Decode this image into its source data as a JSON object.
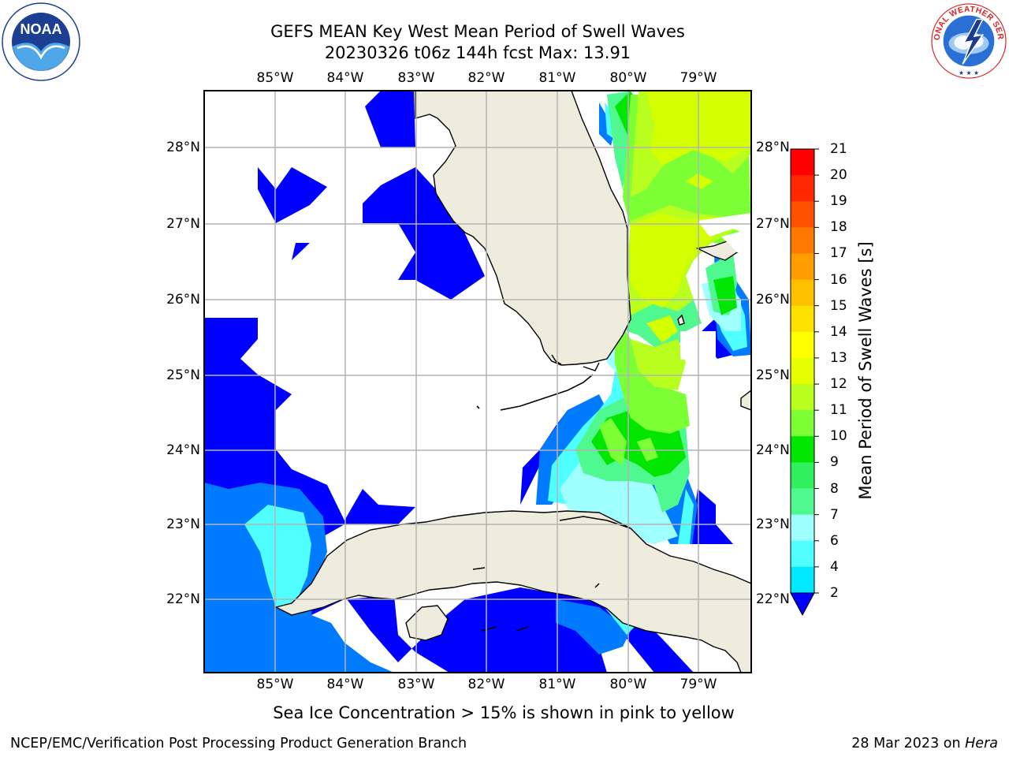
{
  "title": {
    "line1": "GEFS MEAN Key West Mean Period of Swell Waves",
    "line2": "20230326 t06z 144h fcst   Max: 13.91"
  },
  "map": {
    "lon_labels": [
      "85°W",
      "84°W",
      "83°W",
      "82°W",
      "81°W",
      "80°W",
      "79°W"
    ],
    "lat_labels": [
      "28°N",
      "27°N",
      "26°N",
      "25°N",
      "24°N",
      "23°N",
      "22°N"
    ],
    "land_color": "#eeecdc",
    "grid_color": "#b3b3b3"
  },
  "colorbar": {
    "title": "Mean Period of Swell Waves [s]",
    "ticks": [
      "21",
      "20",
      "19",
      "18",
      "17",
      "16",
      "15",
      "14",
      "13",
      "12",
      "11",
      "10",
      "9",
      "8",
      "7",
      "6",
      "4",
      "2"
    ],
    "colors": [
      "#ff0000",
      "#ff2800",
      "#ff5000",
      "#ff7800",
      "#ff9c00",
      "#ffc000",
      "#ffe100",
      "#ffff00",
      "#e5ff00",
      "#b8ff1f",
      "#7dff36",
      "#00e600",
      "#30f060",
      "#50f890",
      "#a0ffff",
      "#50ffff",
      "#00e8ff",
      "#007bff",
      "#0000ff"
    ]
  },
  "footnote": "Sea Ice Concentration > 15% is shown in pink to yellow",
  "credit": "NCEP/EMC/Verification Post Processing Product Generation Branch",
  "date": {
    "text": "28 Mar 2023 on",
    "host": "Hera"
  },
  "logos": {
    "left": "NOAA",
    "right": "NATIONAL WEATHER SERVICE"
  }
}
